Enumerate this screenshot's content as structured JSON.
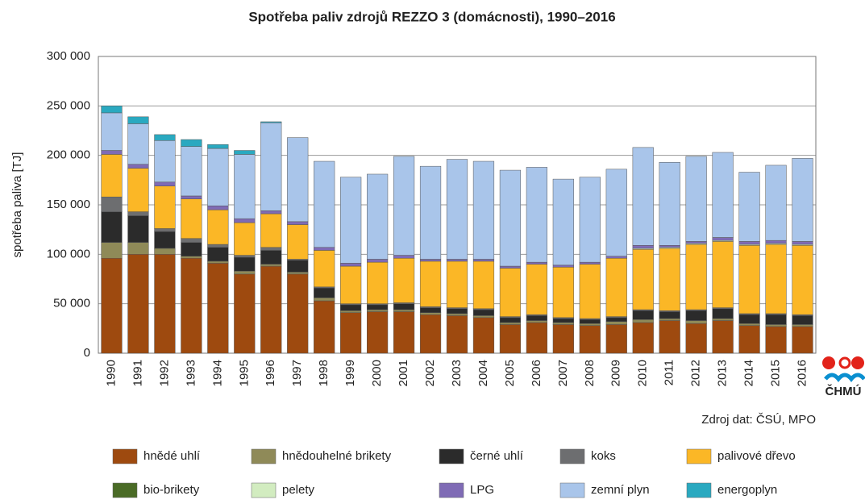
{
  "chart_data": {
    "type": "stacked-bar",
    "title": "Spotřeba paliv zdrojů REZZO 3 (domácnosti), 1990–2016",
    "ylabel": "spotřeba paliva [TJ]",
    "source": "Zdroj dat: ČSÚ, MPO",
    "logo": "ČHMÚ",
    "categories": [
      "1990",
      "1991",
      "1992",
      "1993",
      "1994",
      "1995",
      "1996",
      "1997",
      "1998",
      "1999",
      "2000",
      "2001",
      "2002",
      "2003",
      "2004",
      "2005",
      "2006",
      "2007",
      "2008",
      "2009",
      "2010",
      "2011",
      "2012",
      "2013",
      "2014",
      "2015",
      "2016"
    ],
    "ylim": [
      0,
      300000
    ],
    "yticks": [
      0,
      {
        "value": 50000,
        "label": "50 000"
      },
      {
        "value": 100000,
        "label": "100 000"
      },
      {
        "value": 150000,
        "label": "150 000"
      },
      {
        "value": 200000,
        "label": "200 000"
      },
      {
        "value": 250000,
        "label": "250 000"
      },
      {
        "value": 300000,
        "label": "300 000"
      }
    ],
    "grid": true,
    "series": [
      {
        "name": "hnědé uhlí",
        "color": "#9e4a0f",
        "values": [
          96000,
          100000,
          100000,
          96000,
          91000,
          80000,
          88000,
          80000,
          53000,
          41000,
          42000,
          42000,
          39000,
          38000,
          36000,
          29000,
          31000,
          29000,
          28000,
          29000,
          31000,
          33000,
          30000,
          33000,
          28000,
          27000,
          27000
        ]
      },
      {
        "name": "hnědouhelné brikety",
        "color": "#8f8a58",
        "values": [
          16000,
          12000,
          6000,
          2000,
          2000,
          3000,
          2000,
          2000,
          3000,
          2000,
          2000,
          2000,
          2000,
          2000,
          2000,
          2000,
          2000,
          2000,
          2000,
          3000,
          3000,
          2000,
          3000,
          2000,
          2000,
          2000,
          2000
        ]
      },
      {
        "name": "černé uhlí",
        "color": "#2b2b2b",
        "values": [
          31000,
          27000,
          17000,
          14000,
          14000,
          14000,
          14000,
          12000,
          10000,
          6000,
          5000,
          6000,
          5000,
          5000,
          6000,
          5000,
          5000,
          4000,
          4000,
          4000,
          9000,
          7000,
          10000,
          10000,
          9000,
          10000,
          9000
        ]
      },
      {
        "name": "koks",
        "color": "#6d6e70",
        "values": [
          15000,
          4000,
          3000,
          4000,
          3000,
          2000,
          3000,
          1000,
          1000,
          1000,
          1000,
          1000,
          1000,
          1000,
          1000,
          1000,
          1000,
          1000,
          1000,
          1000,
          1000,
          1000,
          1000,
          1000,
          1000,
          1000,
          1000
        ]
      },
      {
        "name": "palivové dřevo",
        "color": "#fbb726",
        "values": [
          43000,
          44000,
          43000,
          40000,
          35000,
          33000,
          34000,
          35000,
          37000,
          38000,
          42000,
          45000,
          46000,
          47000,
          48000,
          49000,
          51000,
          51000,
          55000,
          59000,
          61000,
          63000,
          66000,
          67000,
          69000,
          70000,
          70000
        ]
      },
      {
        "name": "bio-brikety",
        "color": "#4a6b26",
        "values": [
          0,
          0,
          0,
          0,
          0,
          0,
          0,
          0,
          0,
          0,
          0,
          0,
          0,
          0,
          0,
          0,
          0,
          0,
          0,
          0,
          0,
          0,
          0,
          0,
          0,
          0,
          0
        ]
      },
      {
        "name": "pelety",
        "color": "#d2ecc0",
        "values": [
          0,
          0,
          0,
          0,
          0,
          0,
          0,
          0,
          0,
          0,
          0,
          0,
          0,
          0,
          0,
          0,
          0,
          0,
          0,
          0,
          1000,
          1000,
          1000,
          1000,
          1000,
          1000,
          1000
        ]
      },
      {
        "name": "LPG",
        "color": "#7f6bb5",
        "values": [
          4000,
          4000,
          4000,
          3000,
          4000,
          4000,
          3000,
          3000,
          3000,
          3000,
          3000,
          3000,
          2000,
          2000,
          2000,
          2000,
          2000,
          2000,
          2000,
          2000,
          3000,
          2000,
          2000,
          3000,
          3000,
          3000,
          3000
        ]
      },
      {
        "name": "zemní plyn",
        "color": "#a9c5ea",
        "values": [
          38000,
          41000,
          42000,
          50000,
          58000,
          65000,
          89000,
          85000,
          87000,
          87000,
          86000,
          100000,
          94000,
          101000,
          99000,
          97000,
          96000,
          87000,
          86000,
          88000,
          99000,
          84000,
          86000,
          86000,
          70000,
          76000,
          84000
        ]
      },
      {
        "name": "energoplyn",
        "color": "#2aa9c0",
        "values": [
          7000,
          7000,
          6000,
          7000,
          4000,
          4000,
          1000,
          0,
          0,
          0,
          0,
          0,
          0,
          0,
          0,
          0,
          0,
          0,
          0,
          0,
          0,
          0,
          0,
          0,
          0,
          0,
          0
        ]
      }
    ]
  }
}
